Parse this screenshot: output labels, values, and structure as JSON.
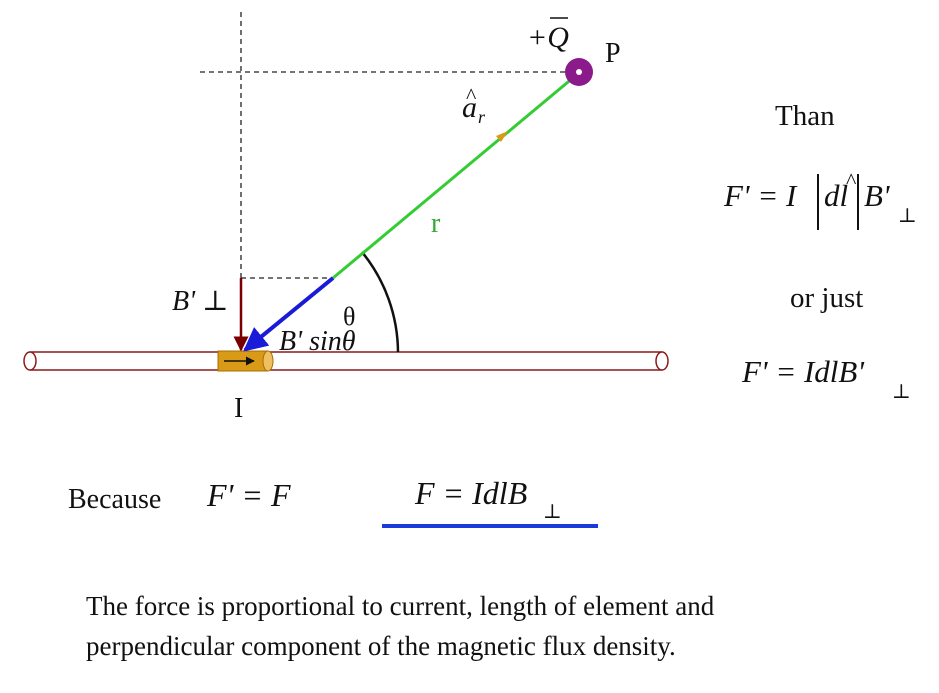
{
  "diagram": {
    "charge_label": "+Q",
    "point_label": "P",
    "unit_vector_symbol": "a",
    "unit_vector_subscript": "r",
    "distance_label": "r",
    "angle_label": "θ",
    "b_perp_label": "B' ⊥",
    "b_component_label": "B' sinθ",
    "current_label": "I"
  },
  "right_panel": {
    "than_label": "Than",
    "formula1": {
      "lhs": "F' = I",
      "mid": "dl",
      "rhs": "B'",
      "sub": "⊥"
    },
    "or_just_label": "or just",
    "formula2": {
      "main": "F' = IdlB'",
      "sub": "⊥"
    }
  },
  "bottom": {
    "because_label": "Because",
    "equation_left": "F' = F",
    "equation_right": {
      "main": "F = IdlB",
      "sub": "⊥"
    }
  },
  "caption": {
    "line1": "The force is proportional to current, length of element and",
    "line2": "perpendicular component of the magnetic flux density."
  },
  "colors": {
    "wire_stroke": "#8b1a1a",
    "element_fill": "#d99a18",
    "r_line": "#33cc33",
    "b_arrow": "#1a1ad9",
    "b_perp_arrow": "#7a0000",
    "charge_fill": "#8b1a8b",
    "underline": "#1a3ad9"
  }
}
